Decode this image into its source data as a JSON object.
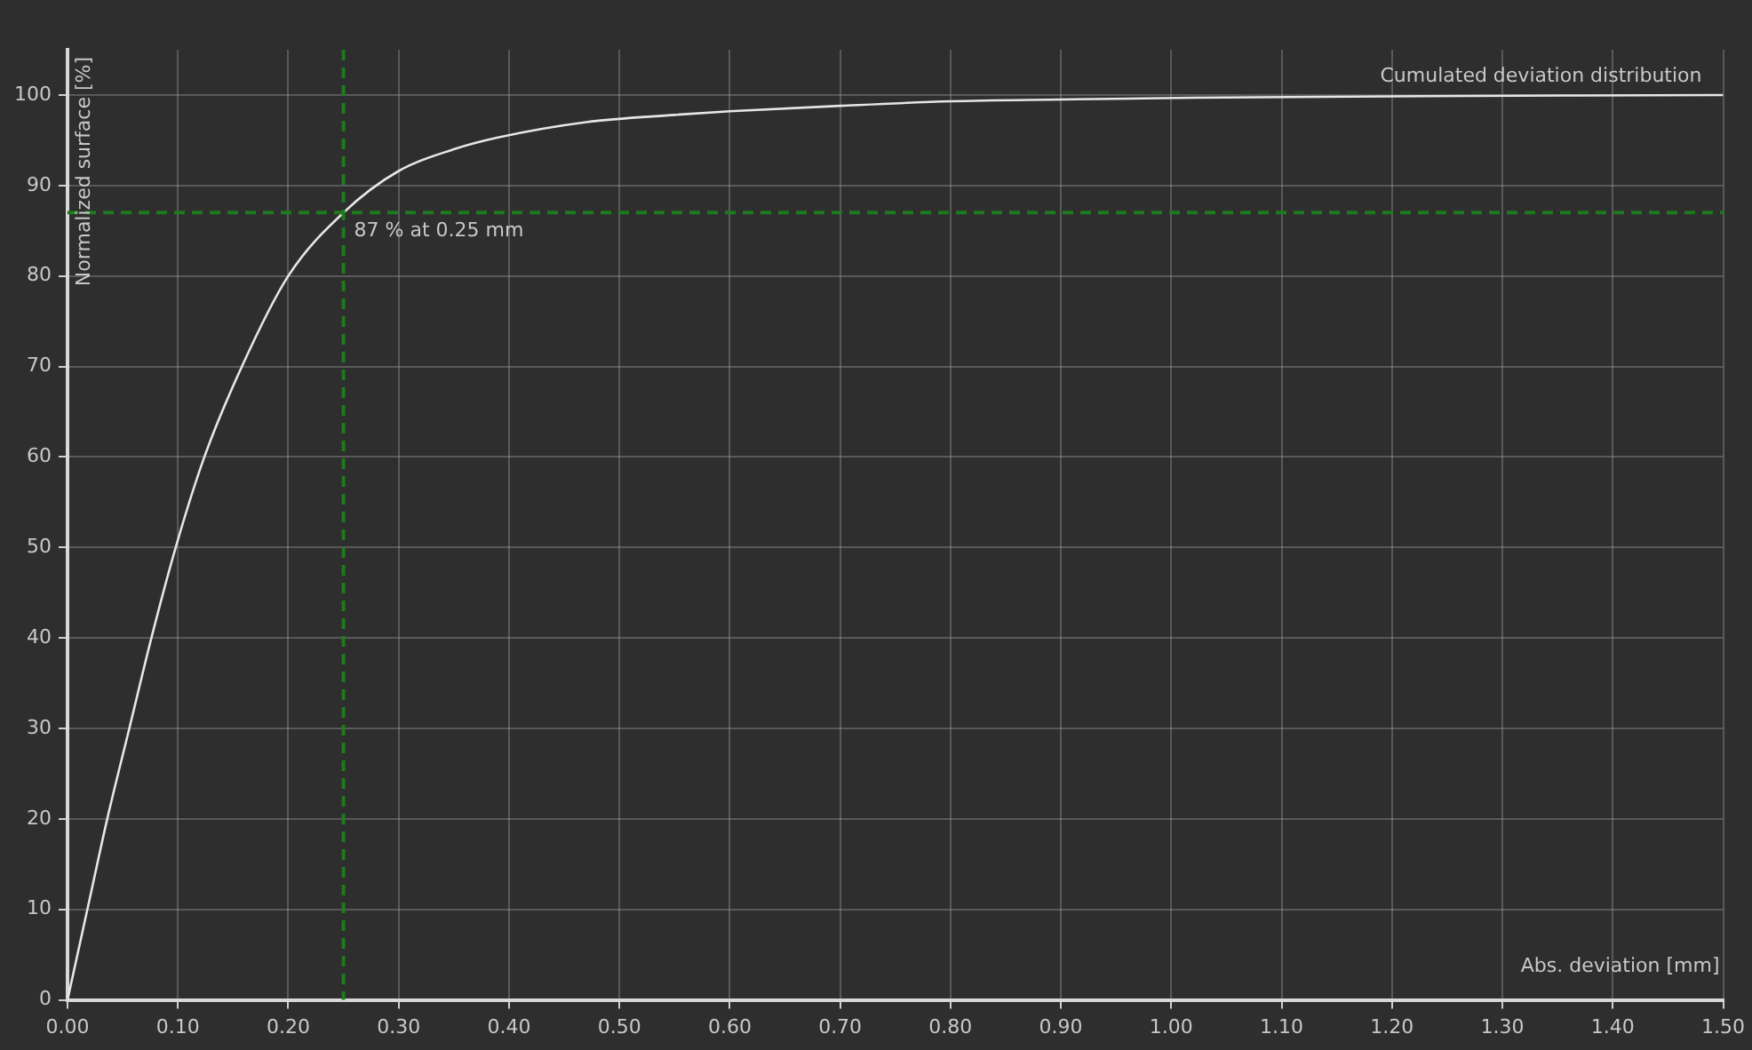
{
  "chart_data": {
    "type": "line",
    "title": "Cumulated deviation distribution",
    "xlabel": "Abs. deviation [mm]",
    "ylabel": "Normalized surface [%]",
    "x": [
      0,
      0.018,
      0.036,
      0.056,
      0.076,
      0.098,
      0.124,
      0.158,
      0.2,
      0.25,
      0.3,
      0.35,
      0.39,
      0.47,
      0.55,
      0.6,
      0.7,
      0.8,
      0.9,
      1.02,
      1.27,
      1.5
    ],
    "series": [
      {
        "color": "#e6e6e6",
        "values": [
          0,
          10,
          20,
          30,
          40,
          50,
          60,
          70,
          80,
          87,
          91.6,
          94,
          95.3,
          97,
          97.8,
          98.2,
          98.8,
          99.3,
          99.5,
          99.7,
          99.9,
          100
        ]
      }
    ],
    "xlim": [
      0,
      1.5
    ],
    "ylim": [
      0,
      105
    ],
    "xticks": [
      {
        "value": 0,
        "label": "0.00"
      },
      {
        "value": 0.1,
        "label": "0.10"
      },
      {
        "value": 0.2,
        "label": "0.20"
      },
      {
        "value": 0.3,
        "label": "0.30"
      },
      {
        "value": 0.4,
        "label": "0.40"
      },
      {
        "value": 0.5,
        "label": "0.50"
      },
      {
        "value": 0.6,
        "label": "0.60"
      },
      {
        "value": 0.7,
        "label": "0.70"
      },
      {
        "value": 0.8,
        "label": "0.80"
      },
      {
        "value": 0.9,
        "label": "0.90"
      },
      {
        "value": 1,
        "label": "1.00"
      },
      {
        "value": 1.1,
        "label": "1.10"
      },
      {
        "value": 1.2,
        "label": "1.20"
      },
      {
        "value": 1.3,
        "label": "1.30"
      },
      {
        "value": 1.4,
        "label": "1.40"
      },
      {
        "value": 1.5,
        "label": "1.50"
      }
    ],
    "yticks": [
      0,
      10,
      20,
      30,
      40,
      50,
      60,
      70,
      80,
      90,
      100
    ],
    "ref_lines": [
      {
        "axis": "x",
        "value": 0.25,
        "color": "#1e7a1e",
        "line_style": "dashed"
      },
      {
        "axis": "y",
        "value": 87,
        "color": "#1e7a1e",
        "line_style": "dashed"
      }
    ],
    "annotations": [
      {
        "text": "87 % at 0.25 mm",
        "x": 0.25,
        "y": 87
      }
    ],
    "grid": true,
    "marker": "none",
    "line_style": "solid"
  }
}
